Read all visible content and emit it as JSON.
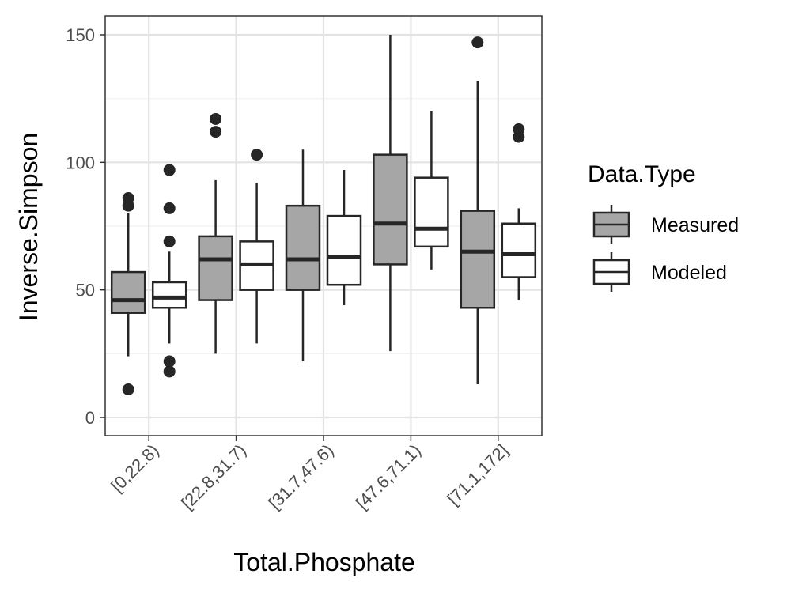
{
  "chart_data": {
    "type": "boxplot",
    "title": "",
    "xlabel": "Total.Phosphate",
    "ylabel": "Inverse.Simpson",
    "ylim": [
      -7,
      157
    ],
    "yticks": [
      0,
      50,
      100,
      150
    ],
    "categories": [
      "[0,22.8)",
      "[22.8,31.7)",
      "[31.7,47.6)",
      "[47.6,71.1)",
      "[71.1,172]"
    ],
    "legend": {
      "title": "Data.Type",
      "position": "right"
    },
    "grid": true,
    "series": [
      {
        "name": "Measured",
        "fill": "#a6a6a6",
        "boxes": [
          {
            "low": 24,
            "q1": 41,
            "median": 46,
            "q3": 57,
            "high": 80,
            "outliers": [
              86,
              83,
              11
            ]
          },
          {
            "low": 25,
            "q1": 46,
            "median": 62,
            "q3": 71,
            "high": 93,
            "outliers": [
              117,
              112
            ]
          },
          {
            "low": 22,
            "q1": 50,
            "median": 62,
            "q3": 83,
            "high": 105,
            "outliers": []
          },
          {
            "low": 26,
            "q1": 60,
            "median": 76,
            "q3": 103,
            "high": 150,
            "outliers": []
          },
          {
            "low": 13,
            "q1": 43,
            "median": 65,
            "q3": 81,
            "high": 132,
            "outliers": [
              147
            ]
          }
        ]
      },
      {
        "name": "Modeled",
        "fill": "#ffffff",
        "boxes": [
          {
            "low": 29,
            "q1": 43,
            "median": 47,
            "q3": 53,
            "high": 65,
            "outliers": [
              97,
              82,
              69,
              22,
              18
            ]
          },
          {
            "low": 29,
            "q1": 50,
            "median": 60,
            "q3": 69,
            "high": 92,
            "outliers": [
              103
            ]
          },
          {
            "low": 44,
            "q1": 52,
            "median": 63,
            "q3": 79,
            "high": 97,
            "outliers": []
          },
          {
            "low": 58,
            "q1": 67,
            "median": 74,
            "q3": 94,
            "high": 120,
            "outliers": []
          },
          {
            "low": 46,
            "q1": 55,
            "median": 64,
            "q3": 76,
            "high": 82,
            "outliers": [
              113,
              110
            ]
          }
        ]
      }
    ]
  }
}
